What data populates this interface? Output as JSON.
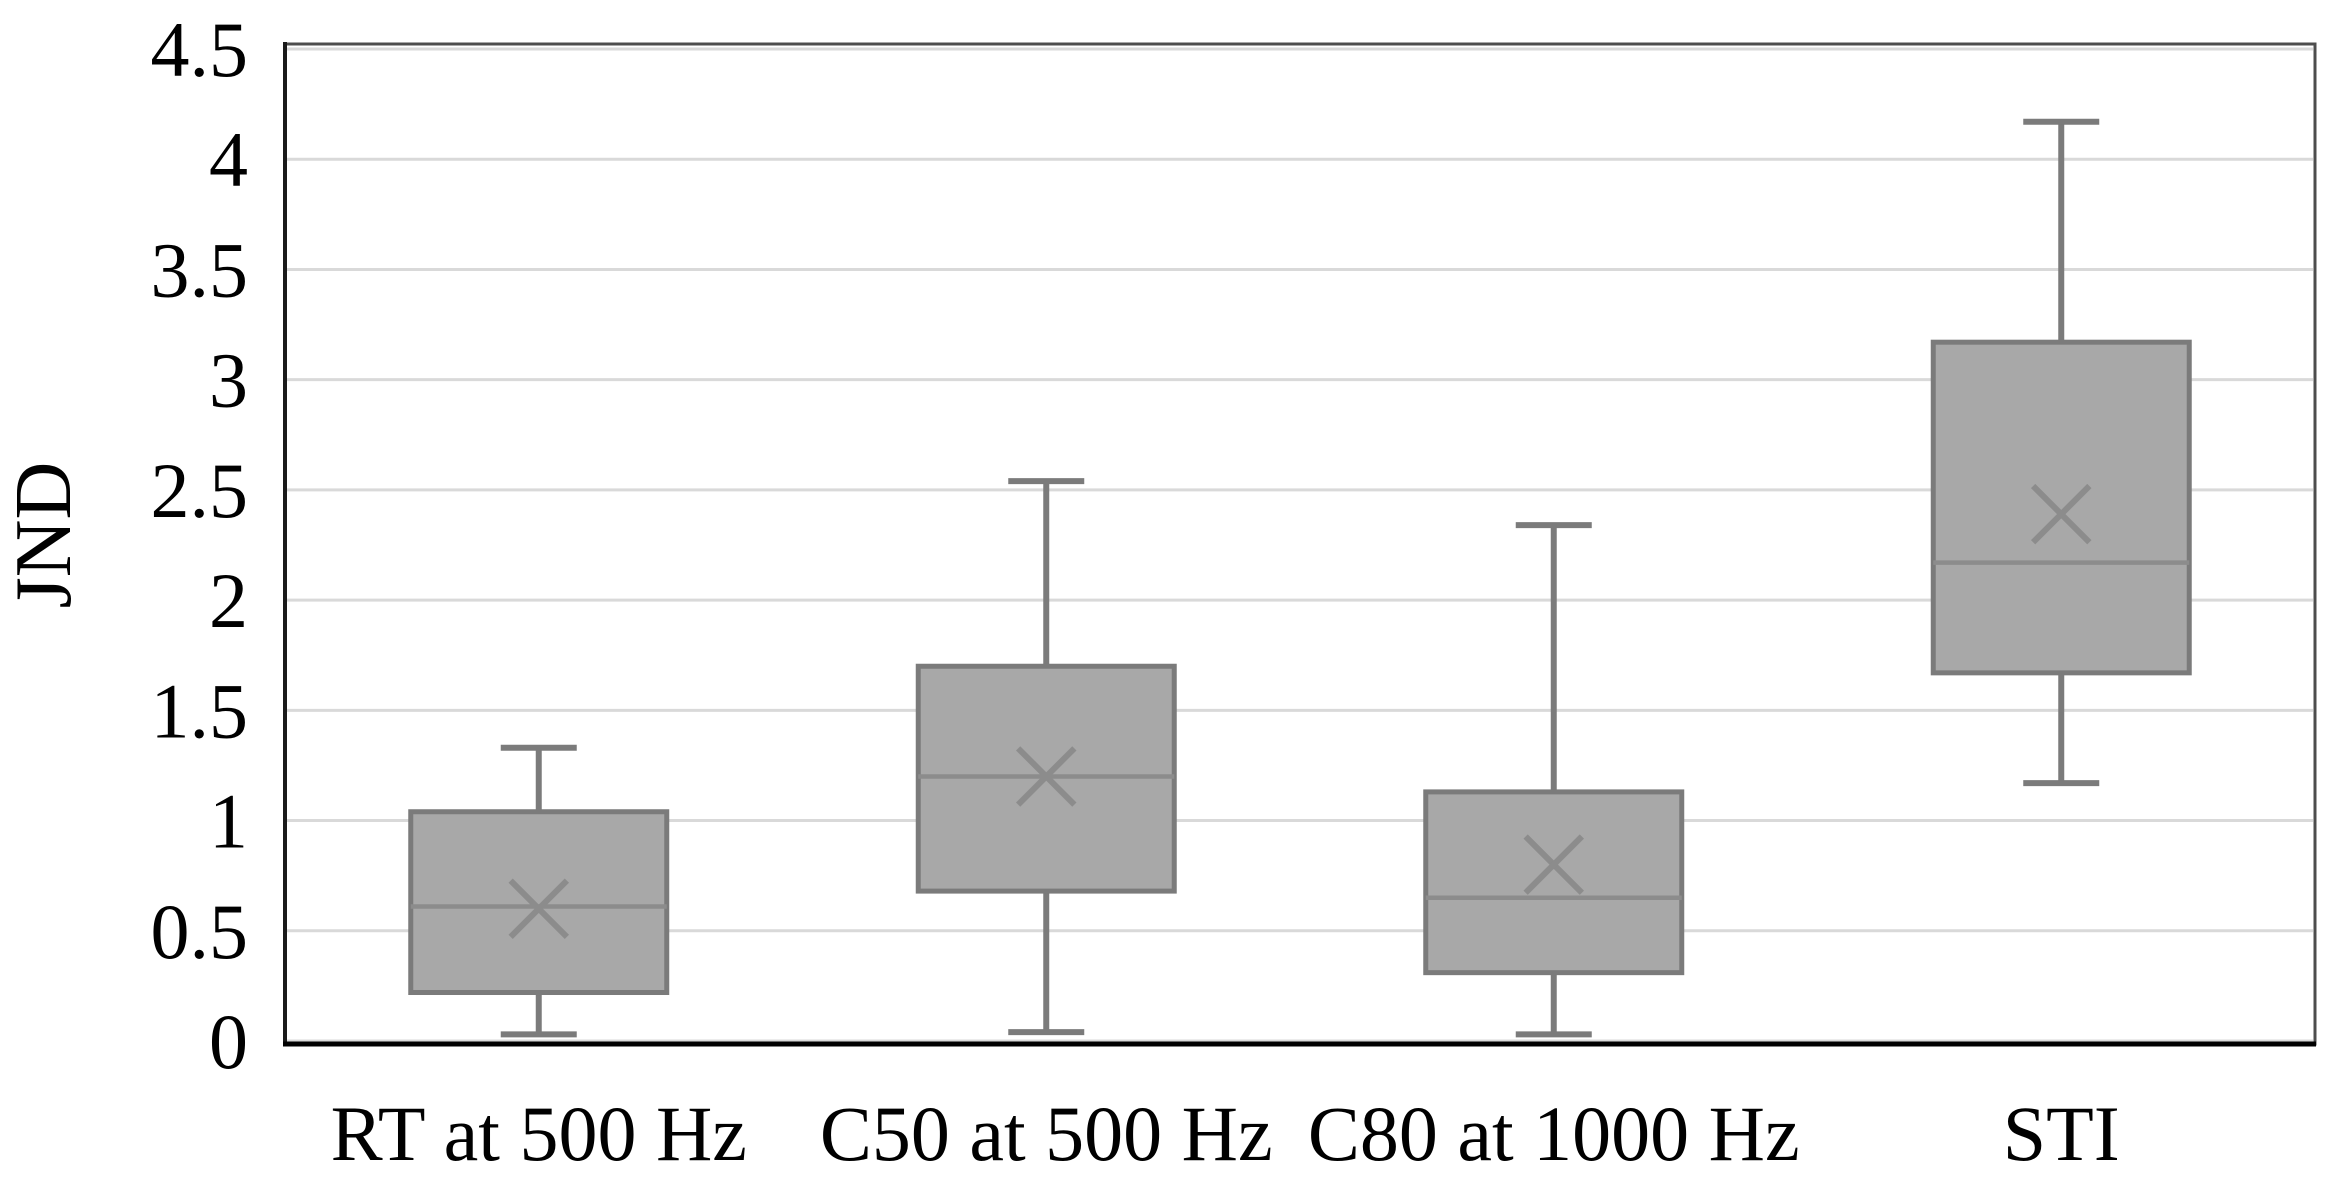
{
  "chart_data": {
    "type": "boxplot",
    "title": "",
    "ylabel": "JND",
    "xlabel": "",
    "ylim": [
      0,
      4.5
    ],
    "ytick_step": 0.5,
    "ytick_labels": [
      "0",
      "0.5",
      "1",
      "1.5",
      "2",
      "2.5",
      "3",
      "3.5",
      "4",
      "4.5"
    ],
    "categories": [
      "RT at 500 Hz",
      "C50 at 500 Hz",
      "C80 at 1000 Hz",
      "STI"
    ],
    "series": [
      {
        "name": "RT at 500 Hz",
        "whisker_low": 0.03,
        "q1": 0.22,
        "median": 0.61,
        "q3": 1.04,
        "whisker_high": 1.33,
        "mean": 0.6
      },
      {
        "name": "C50 at 500 Hz",
        "whisker_low": 0.04,
        "q1": 0.68,
        "median": 1.2,
        "q3": 1.7,
        "whisker_high": 2.54,
        "mean": 1.2
      },
      {
        "name": "C80 at 1000 Hz",
        "whisker_low": 0.03,
        "q1": 0.31,
        "median": 0.65,
        "q3": 1.13,
        "whisker_high": 2.34,
        "mean": 0.8
      },
      {
        "name": "STI",
        "whisker_low": 1.17,
        "q1": 1.67,
        "median": 2.17,
        "q3": 3.17,
        "whisker_high": 4.17,
        "mean": 2.39
      }
    ],
    "grid": true,
    "legend": false,
    "mean_marker": "x",
    "colors": {
      "background": "#ffffff",
      "box_fill": "#a8a8a8",
      "box_stroke": "#7b7b7b",
      "median_line": "#8c8c8c",
      "whisker": "#7b7b7b",
      "mean_marker": "#8c8c8c",
      "gridline": "#d9d9d9",
      "frame": "#4d4d4d",
      "axis_left": "#1a1a1a",
      "axis_bottom": "#000000",
      "text": "#000000"
    }
  }
}
